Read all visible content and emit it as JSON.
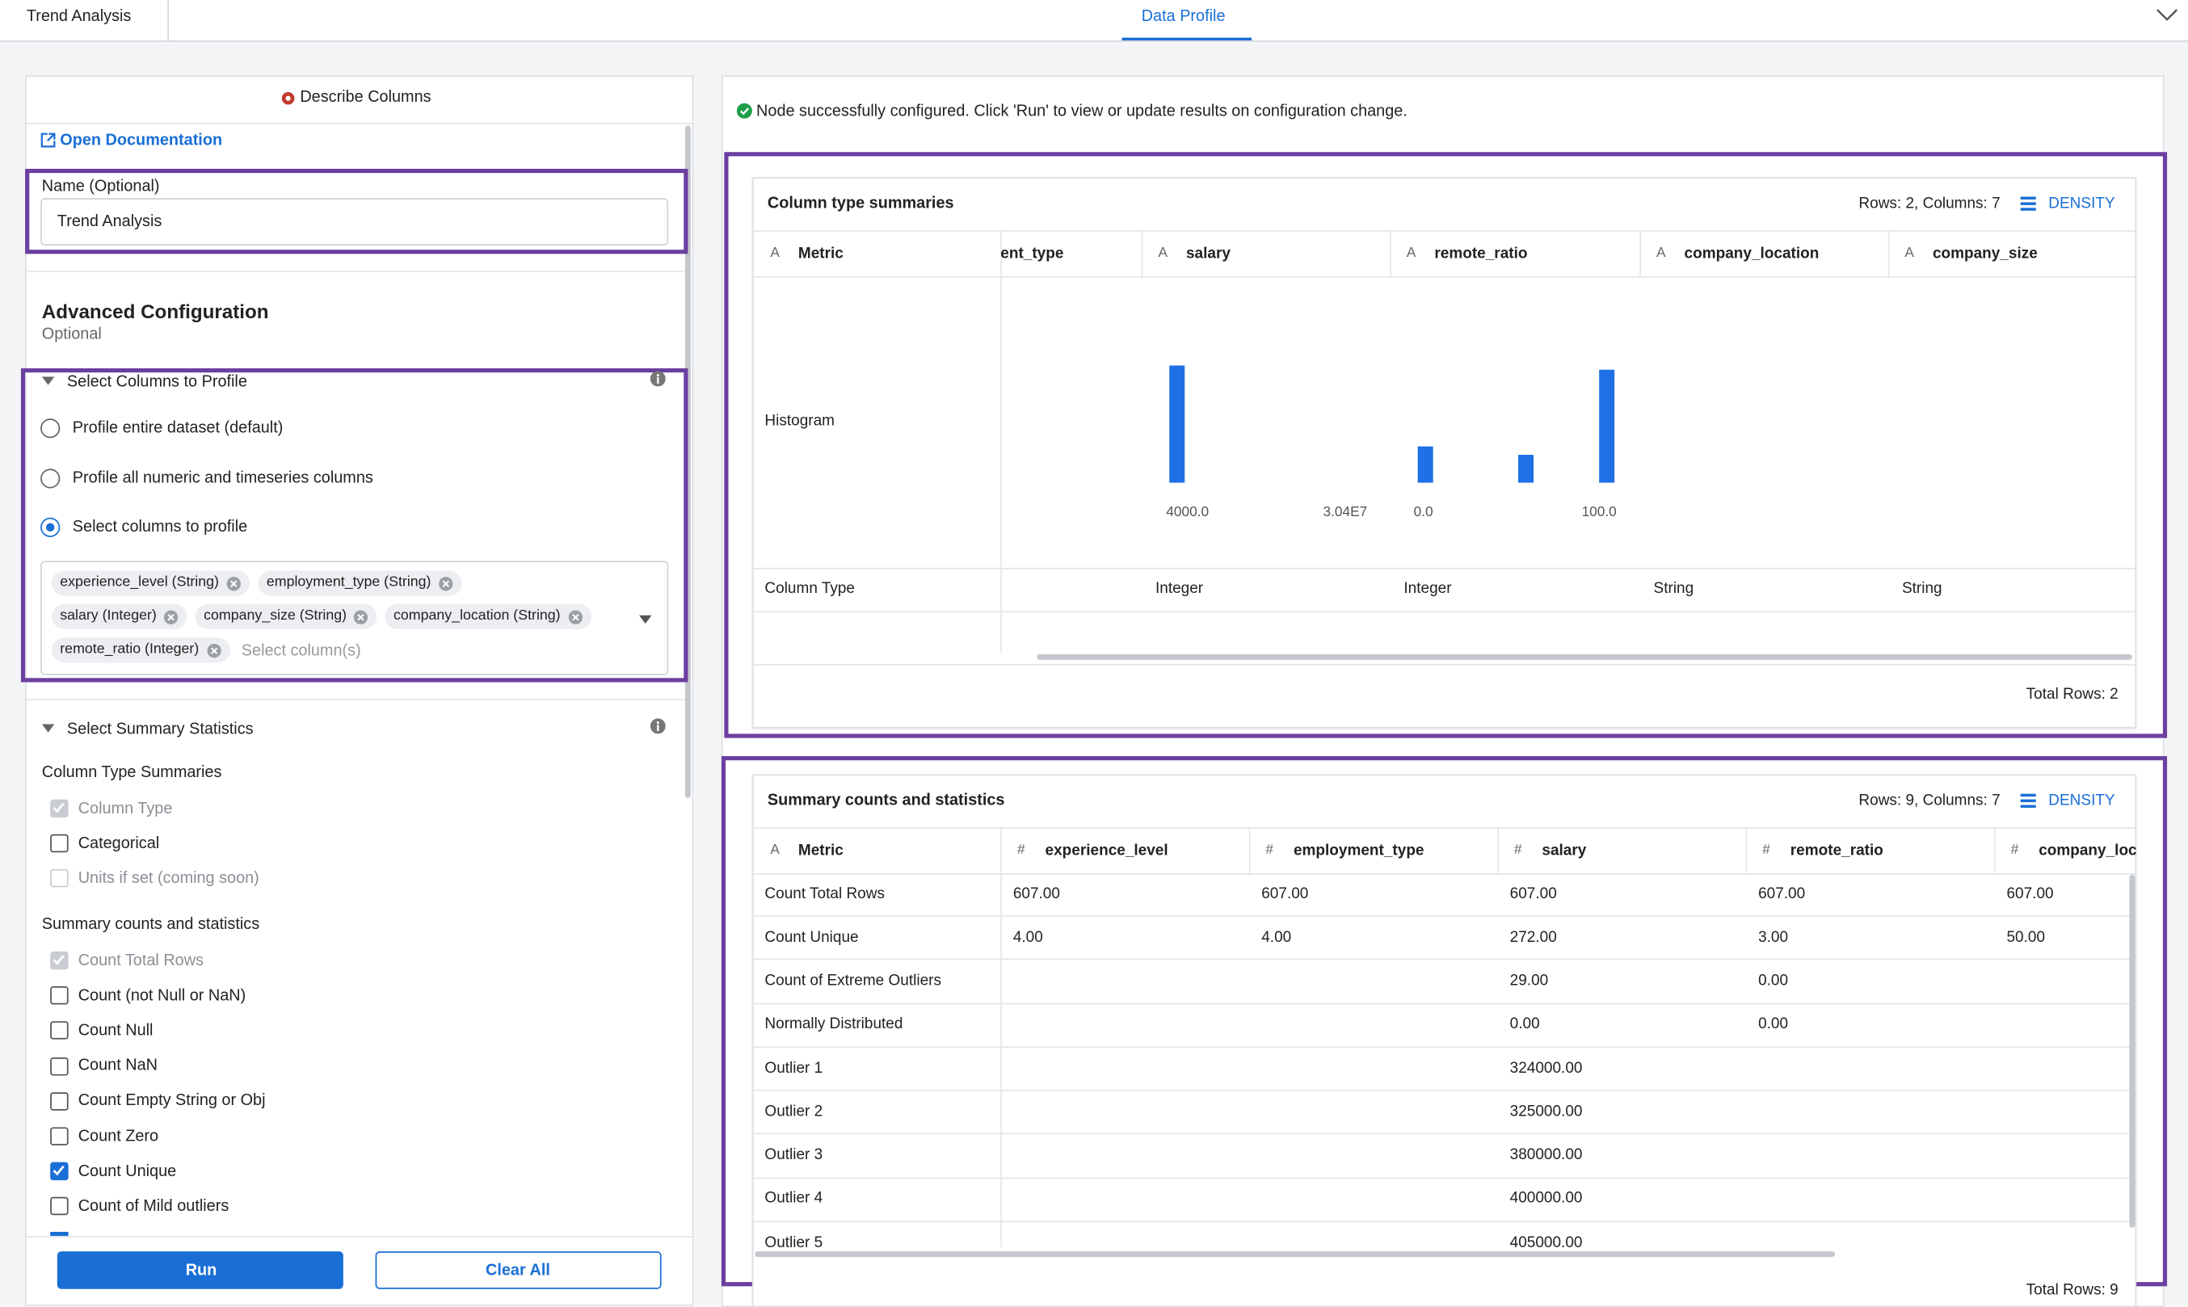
{
  "tabs": {
    "left": "Trend Analysis",
    "active": "Data Profile"
  },
  "panel": {
    "title": "Describe Columns",
    "doc_link": "Open Documentation",
    "name_label": "Name (Optional)",
    "name_value": "Trend Analysis",
    "advanced_title": "Advanced Configuration",
    "advanced_sub": "Optional",
    "select_section": "Select Columns to Profile",
    "radio_options": [
      {
        "label": "Profile entire dataset (default)",
        "selected": false
      },
      {
        "label": "Profile all numeric and timeseries columns",
        "selected": false
      },
      {
        "label": "Select columns to profile",
        "selected": true
      }
    ],
    "chips": [
      [
        "experience_level (String)",
        "employment_type (String)"
      ],
      [
        "salary (Integer)",
        "company_size (String)",
        "company_location (String)"
      ],
      [
        "remote_ratio (Integer)"
      ]
    ],
    "chip_placeholder": "Select column(s)",
    "stats_section": "Select Summary Statistics",
    "groups": [
      {
        "title": "Column Type Summaries",
        "items": [
          {
            "label": "Column Type",
            "checked": true,
            "disabled": true
          },
          {
            "label": "Categorical",
            "checked": false,
            "disabled": false
          },
          {
            "label": "Units if set (coming soon)",
            "checked": false,
            "disabled": true
          }
        ]
      },
      {
        "title": "Summary counts and statistics",
        "items": [
          {
            "label": "Count Total Rows",
            "checked": true,
            "disabled": true
          },
          {
            "label": "Count (not Null or NaN)",
            "checked": false,
            "disabled": false
          },
          {
            "label": "Count Null",
            "checked": false,
            "disabled": false
          },
          {
            "label": "Count NaN",
            "checked": false,
            "disabled": false
          },
          {
            "label": "Count Empty String or Obj",
            "checked": false,
            "disabled": false
          },
          {
            "label": "Count Zero",
            "checked": false,
            "disabled": false
          },
          {
            "label": "Count Unique",
            "checked": true,
            "disabled": false
          },
          {
            "label": "Count of Mild outliers",
            "checked": false,
            "disabled": false
          }
        ]
      }
    ],
    "run": "Run",
    "clear": "Clear All"
  },
  "status": "Node successfully configured. Click 'Run' to view or update results on configuration change.",
  "table1": {
    "title": "Column type summaries",
    "info": "Rows: 2, Columns: 7",
    "density": "DENSITY",
    "headers": [
      {
        "icon": "A",
        "label": "Metric"
      },
      {
        "icon": null,
        "label": "ent_type"
      },
      {
        "icon": "A",
        "label": "salary"
      },
      {
        "icon": "A",
        "label": "remote_ratio"
      },
      {
        "icon": "A",
        "label": "company_location"
      },
      {
        "icon": "A",
        "label": "company_size"
      }
    ],
    "histogram_label": "Histogram",
    "histograms": [
      null,
      [
        "4000.0",
        "3.04E7"
      ],
      [
        "0.0",
        "100.0"
      ],
      null,
      null
    ],
    "rows": [
      [
        "Column Type",
        null,
        "Integer",
        "Integer",
        "String",
        "String"
      ]
    ],
    "footer": "Total Rows: 2"
  },
  "table2": {
    "title": "Summary counts and statistics",
    "info": "Rows: 9, Columns: 7",
    "density": "DENSITY",
    "headers": [
      {
        "icon": "A",
        "label": "Metric"
      },
      {
        "icon": "#",
        "label": "experience_level"
      },
      {
        "icon": "#",
        "label": "employment_type"
      },
      {
        "icon": "#",
        "label": "salary"
      },
      {
        "icon": "#",
        "label": "remote_ratio"
      },
      {
        "icon": "#",
        "label": "company_loc"
      }
    ],
    "rows": [
      [
        "Count Total Rows",
        "607.00",
        "607.00",
        "607.00",
        "607.00",
        "607.00"
      ],
      [
        "Count Unique",
        "4.00",
        "4.00",
        "272.00",
        "3.00",
        "50.00"
      ],
      [
        "Count of Extreme Outliers",
        null,
        null,
        "29.00",
        "0.00",
        null
      ],
      [
        "Normally Distributed",
        null,
        null,
        "0.00",
        "0.00",
        null
      ],
      [
        "Outlier 1",
        null,
        null,
        "324000.00",
        null,
        null
      ],
      [
        "Outlier 2",
        null,
        null,
        "325000.00",
        null,
        null
      ],
      [
        "Outlier 3",
        null,
        null,
        "380000.00",
        null,
        null
      ],
      [
        "Outlier 4",
        null,
        null,
        "400000.00",
        null,
        null
      ],
      [
        "Outlier 5",
        null,
        null,
        "405000.00",
        null,
        null
      ]
    ],
    "footer": "Total Rows: 9"
  }
}
